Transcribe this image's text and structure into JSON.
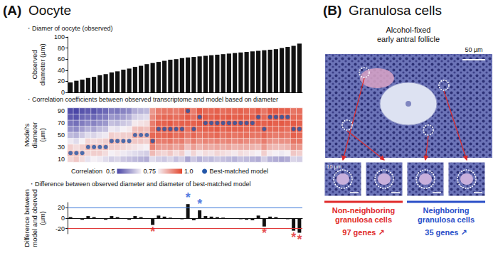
{
  "panel_a": {
    "label": "(A)",
    "title": "Oocyte"
  },
  "chart_data": [
    {
      "type": "bar",
      "title": "・Diamer of oocyte (observed)",
      "y_label": [
        "Observed",
        "diameter (µm)"
      ],
      "values": [
        18,
        21,
        23,
        26,
        28,
        31,
        33,
        36,
        38,
        41,
        43,
        46,
        48,
        51,
        53,
        55,
        57,
        59,
        60,
        62,
        63,
        64,
        65,
        66,
        67,
        68,
        69,
        70,
        71,
        72,
        73,
        74,
        75,
        76,
        77,
        78,
        80,
        82,
        84,
        88
      ],
      "color": "#111111",
      "ylim": [
        0,
        100
      ],
      "yticks": [
        0,
        20,
        40,
        60,
        80,
        100
      ],
      "grid": false,
      "tick_labels": "y"
    },
    {
      "type": "heatmap",
      "title": "・Correlation coefficients between observed transcriptome and model based on diameter",
      "y_label": [
        "Model's",
        "diameter",
        "(µm)"
      ],
      "models": [
        10,
        20,
        30,
        40,
        50,
        60,
        70,
        80,
        90
      ],
      "yticks": [
        10,
        30,
        50,
        70,
        90
      ],
      "correlations": [
        [
          0.79,
          0.84,
          0.8,
          0.74,
          0.67,
          0.61,
          0.57,
          0.53,
          0.51
        ],
        [
          0.81,
          0.83,
          0.78,
          0.72,
          0.66,
          0.6,
          0.56,
          0.52,
          0.5
        ],
        [
          0.78,
          0.82,
          0.8,
          0.75,
          0.69,
          0.63,
          0.58,
          0.55,
          0.52
        ],
        [
          0.73,
          0.79,
          0.84,
          0.79,
          0.72,
          0.66,
          0.6,
          0.56,
          0.53
        ],
        [
          0.75,
          0.8,
          0.83,
          0.78,
          0.71,
          0.64,
          0.59,
          0.55,
          0.52
        ],
        [
          0.74,
          0.8,
          0.82,
          0.79,
          0.73,
          0.67,
          0.61,
          0.57,
          0.54
        ],
        [
          0.72,
          0.78,
          0.83,
          0.8,
          0.74,
          0.68,
          0.62,
          0.58,
          0.55
        ],
        [
          0.7,
          0.75,
          0.8,
          0.85,
          0.8,
          0.74,
          0.68,
          0.62,
          0.58
        ],
        [
          0.71,
          0.76,
          0.8,
          0.84,
          0.79,
          0.73,
          0.67,
          0.61,
          0.57
        ],
        [
          0.69,
          0.74,
          0.79,
          0.83,
          0.8,
          0.75,
          0.69,
          0.63,
          0.59
        ],
        [
          0.68,
          0.73,
          0.78,
          0.82,
          0.8,
          0.76,
          0.7,
          0.65,
          0.6
        ],
        [
          0.67,
          0.72,
          0.77,
          0.81,
          0.86,
          0.82,
          0.76,
          0.7,
          0.65
        ],
        [
          0.66,
          0.71,
          0.76,
          0.81,
          0.85,
          0.83,
          0.77,
          0.71,
          0.66
        ],
        [
          0.65,
          0.7,
          0.75,
          0.8,
          0.84,
          0.82,
          0.78,
          0.72,
          0.67
        ],
        [
          0.72,
          0.83,
          0.91,
          0.96,
          0.95,
          0.93,
          0.92,
          0.9,
          0.88
        ],
        [
          0.7,
          0.8,
          0.88,
          0.92,
          0.95,
          0.97,
          0.96,
          0.94,
          0.92
        ],
        [
          0.69,
          0.79,
          0.87,
          0.92,
          0.95,
          0.97,
          0.96,
          0.95,
          0.93
        ],
        [
          0.71,
          0.81,
          0.88,
          0.93,
          0.96,
          0.98,
          0.97,
          0.95,
          0.93
        ],
        [
          0.68,
          0.78,
          0.86,
          0.91,
          0.94,
          0.96,
          0.95,
          0.94,
          0.92
        ],
        [
          0.7,
          0.8,
          0.88,
          0.92,
          0.95,
          0.97,
          0.96,
          0.95,
          0.94
        ],
        [
          0.64,
          0.74,
          0.82,
          0.88,
          0.92,
          0.94,
          0.96,
          0.97,
          0.98
        ],
        [
          0.69,
          0.79,
          0.87,
          0.92,
          0.95,
          0.97,
          0.96,
          0.94,
          0.92
        ],
        [
          0.66,
          0.76,
          0.84,
          0.89,
          0.93,
          0.95,
          0.97,
          0.98,
          0.97
        ],
        [
          0.68,
          0.78,
          0.86,
          0.91,
          0.94,
          0.96,
          0.98,
          0.97,
          0.95
        ],
        [
          0.67,
          0.77,
          0.85,
          0.9,
          0.94,
          0.96,
          0.97,
          0.96,
          0.95
        ],
        [
          0.69,
          0.79,
          0.86,
          0.91,
          0.95,
          0.97,
          0.98,
          0.97,
          0.96
        ],
        [
          0.68,
          0.78,
          0.85,
          0.9,
          0.93,
          0.95,
          0.97,
          0.96,
          0.94
        ],
        [
          0.67,
          0.77,
          0.86,
          0.91,
          0.94,
          0.96,
          0.98,
          0.97,
          0.95
        ],
        [
          0.66,
          0.76,
          0.84,
          0.9,
          0.93,
          0.96,
          0.97,
          0.96,
          0.95
        ],
        [
          0.68,
          0.78,
          0.85,
          0.91,
          0.94,
          0.96,
          0.98,
          0.97,
          0.96
        ],
        [
          0.67,
          0.77,
          0.85,
          0.9,
          0.94,
          0.95,
          0.97,
          0.96,
          0.95
        ],
        [
          0.66,
          0.76,
          0.84,
          0.89,
          0.93,
          0.95,
          0.97,
          0.96,
          0.94
        ],
        [
          0.65,
          0.75,
          0.83,
          0.89,
          0.93,
          0.95,
          0.97,
          0.98,
          0.97
        ],
        [
          0.7,
          0.8,
          0.88,
          0.92,
          0.95,
          0.97,
          0.96,
          0.95,
          0.93
        ],
        [
          0.66,
          0.76,
          0.84,
          0.89,
          0.93,
          0.95,
          0.97,
          0.98,
          0.97
        ],
        [
          0.65,
          0.75,
          0.83,
          0.88,
          0.92,
          0.95,
          0.96,
          0.98,
          0.97
        ],
        [
          0.64,
          0.74,
          0.83,
          0.89,
          0.93,
          0.95,
          0.97,
          0.98,
          0.96
        ],
        [
          0.65,
          0.75,
          0.84,
          0.89,
          0.92,
          0.94,
          0.96,
          0.97,
          0.96
        ],
        [
          0.71,
          0.81,
          0.89,
          0.93,
          0.96,
          0.98,
          0.97,
          0.95,
          0.93
        ],
        [
          0.7,
          0.8,
          0.88,
          0.93,
          0.95,
          0.97,
          0.96,
          0.95,
          0.94
        ]
      ],
      "color_bar": {
        "title": "Correlation",
        "range": [
          0.5,
          1.0
        ],
        "ticks": [
          0.5,
          0.75,
          {
            "value": 1.0,
            "label": "1.0"
          }
        ]
      },
      "series": [
        {
          "name": "Best-matched model",
          "type": "scatter",
          "marker": "circle",
          "color": "#2457a8",
          "values": [
            20,
            20,
            20,
            30,
            30,
            30,
            30,
            40,
            40,
            40,
            40,
            50,
            50,
            50,
            40,
            60,
            60,
            60,
            60,
            60,
            90,
            60,
            80,
            70,
            70,
            70,
            70,
            70,
            70,
            70,
            70,
            70,
            80,
            60,
            80,
            80,
            80,
            80,
            60,
            60
          ]
        }
      ],
      "tick_labels": "y"
    },
    {
      "type": "bar",
      "title": "・Difference between observed diameter and diameter of best-matched model",
      "y_label": [
        "Difference between",
        "model and oberved",
        "(µm)"
      ],
      "values": [
        2,
        -1,
        -3,
        4,
        2,
        -1,
        -3,
        4,
        2,
        -1,
        -3,
        4,
        2,
        -1,
        -13,
        5,
        3,
        1,
        0,
        -2,
        27,
        -4,
        15,
        4,
        3,
        2,
        1,
        0,
        -1,
        -2,
        -3,
        -4,
        5,
        -16,
        3,
        2,
        0,
        -2,
        -24,
        -28
      ],
      "color": "#111111",
      "ylim": [
        -30,
        30
      ],
      "yticks": [
        -20,
        0,
        20
      ],
      "grid": false,
      "tick_labels": "y",
      "ref_lines": [
        {
          "value": 20,
          "color": "#3a78d8"
        },
        {
          "value": -20,
          "color": "#e03a3a"
        }
      ],
      "annotations": [
        {
          "index": 14,
          "text": "*",
          "color": "#e02424"
        },
        {
          "index": 20,
          "text": "*",
          "color": "#2a5ad8"
        },
        {
          "index": 22,
          "text": "*",
          "color": "#2a5ad8"
        },
        {
          "index": 33,
          "text": "*",
          "color": "#e02424"
        },
        {
          "index": 38,
          "text": "*",
          "color": "#e02424"
        },
        {
          "index": 39,
          "text": "*",
          "color": "#e02424"
        }
      ]
    }
  ],
  "panel_b": {
    "label": "(B)",
    "title": "Granulosa cells",
    "caption": [
      "Alcohol-fixed",
      "early antral follicle"
    ],
    "scale_bar": "50 µm",
    "inset_scale_bar": "10 µm",
    "groups": [
      {
        "name": [
          "Non-neighboring",
          "granulosa cells"
        ],
        "genes": "97 genes ↗",
        "color": "#e02a2a"
      },
      {
        "name": [
          "Neighboring",
          "granulosa cells"
        ],
        "genes": "35 genes ↗",
        "color": "#2a4fc8"
      }
    ]
  }
}
